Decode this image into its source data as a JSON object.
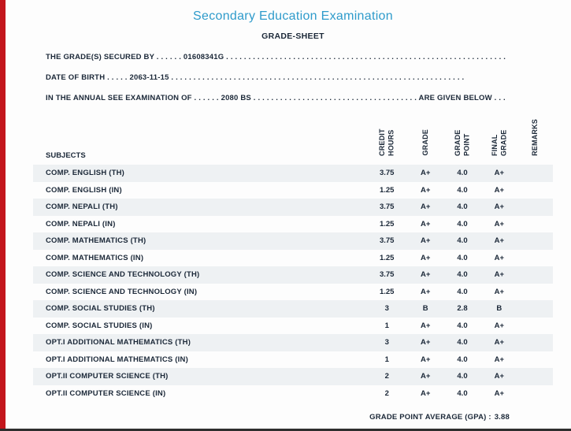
{
  "header": {
    "title": "Secondary Education Examination",
    "subtitle": "GRADE-SHEET"
  },
  "info": {
    "line1": "THE GRADE(S) SECURED BY . . . . . . 01608341G . . . . . . . . . . . . . . . . . . . . . . . . . . . . . . . . . . . . . . . . . . . . . . . . . . . . . . . . . . . . . . .",
    "line2": "DATE OF BIRTH . . . . . 2063-11-15 . . . . . . . . . . . . . . . . . . . . . . . . . . . . . . . . . . . . . . . . . . . . . . . . . . . . . . . . . . . . . . . . . .",
    "line3": "IN THE ANNUAL SEE EXAMINATION OF . . . . . . 2080 BS . . . . . . . . . . . . . . . . . . . . . . . . . . . . . . . . . . . . . ARE GIVEN BELOW . . ."
  },
  "table": {
    "subjects_header": "SUBJECTS",
    "columns": [
      "CREDIT HOURS",
      "GRADE",
      "GRADE POINT",
      "FINAL GRADE",
      "REMARKS"
    ],
    "rows": [
      {
        "subject": "COMP. ENGLISH (TH)",
        "credit_hours": "3.75",
        "grade": "A+",
        "grade_point": "4.0",
        "final_grade": "A+",
        "remarks": ""
      },
      {
        "subject": "COMP. ENGLISH (IN)",
        "credit_hours": "1.25",
        "grade": "A+",
        "grade_point": "4.0",
        "final_grade": "A+",
        "remarks": ""
      },
      {
        "subject": "COMP. NEPALI (TH)",
        "credit_hours": "3.75",
        "grade": "A+",
        "grade_point": "4.0",
        "final_grade": "A+",
        "remarks": ""
      },
      {
        "subject": "COMP. NEPALI (IN)",
        "credit_hours": "1.25",
        "grade": "A+",
        "grade_point": "4.0",
        "final_grade": "A+",
        "remarks": ""
      },
      {
        "subject": "COMP. MATHEMATICS (TH)",
        "credit_hours": "3.75",
        "grade": "A+",
        "grade_point": "4.0",
        "final_grade": "A+",
        "remarks": ""
      },
      {
        "subject": "COMP. MATHEMATICS (IN)",
        "credit_hours": "1.25",
        "grade": "A+",
        "grade_point": "4.0",
        "final_grade": "A+",
        "remarks": ""
      },
      {
        "subject": "COMP. SCIENCE AND TECHNOLOGY (TH)",
        "credit_hours": "3.75",
        "grade": "A+",
        "grade_point": "4.0",
        "final_grade": "A+",
        "remarks": ""
      },
      {
        "subject": "COMP. SCIENCE AND TECHNOLOGY (IN)",
        "credit_hours": "1.25",
        "grade": "A+",
        "grade_point": "4.0",
        "final_grade": "A+",
        "remarks": ""
      },
      {
        "subject": "COMP. SOCIAL STUDIES (TH)",
        "credit_hours": "3",
        "grade": "B",
        "grade_point": "2.8",
        "final_grade": "B",
        "remarks": ""
      },
      {
        "subject": "COMP. SOCIAL STUDIES (IN)",
        "credit_hours": "1",
        "grade": "A+",
        "grade_point": "4.0",
        "final_grade": "A+",
        "remarks": ""
      },
      {
        "subject": "OPT.I ADDITIONAL MATHEMATICS (TH)",
        "credit_hours": "3",
        "grade": "A+",
        "grade_point": "4.0",
        "final_grade": "A+",
        "remarks": ""
      },
      {
        "subject": "OPT.I ADDITIONAL MATHEMATICS (IN)",
        "credit_hours": "1",
        "grade": "A+",
        "grade_point": "4.0",
        "final_grade": "A+",
        "remarks": ""
      },
      {
        "subject": "OPT.II COMPUTER SCIENCE (TH)",
        "credit_hours": "2",
        "grade": "A+",
        "grade_point": "4.0",
        "final_grade": "A+",
        "remarks": ""
      },
      {
        "subject": "OPT.II COMPUTER SCIENCE (IN)",
        "credit_hours": "2",
        "grade": "A+",
        "grade_point": "4.0",
        "final_grade": "A+",
        "remarks": ""
      }
    ]
  },
  "footer": {
    "gpa_label": "GRADE POINT AVERAGE (GPA) :",
    "gpa_value": "3.88"
  },
  "colors": {
    "title_blue": "#2e9bcb",
    "left_stripe_red": "#c3161c",
    "row_stripe": "#eef1f3",
    "text_dark": "#1b2838"
  }
}
